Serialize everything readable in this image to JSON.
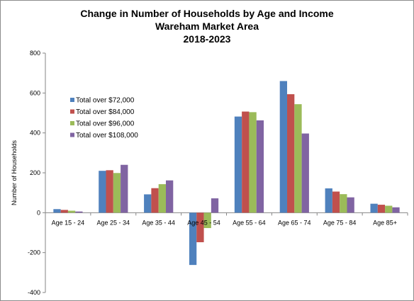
{
  "chart_data": {
    "type": "bar",
    "title": [
      "Change in Number of Households by Age and Income",
      "Wareham Market Area",
      "2018-2023"
    ],
    "xlabel": "",
    "ylabel": "Number of Households",
    "ylim": [
      -400,
      800
    ],
    "yticks": [
      -400,
      -200,
      0,
      200,
      400,
      600,
      800
    ],
    "grid": false,
    "legend_position": "top-left",
    "categories": [
      "Age 15 - 24",
      "Age 25 - 34",
      "Age 35 - 44",
      "Age 45 - 54",
      "Age 55 - 64",
      "Age 65 - 74",
      "Age 75 - 84",
      "Age 85+"
    ],
    "series": [
      {
        "name": "Total over $72,000",
        "color": "#4f81bd",
        "values": [
          18,
          210,
          92,
          -262,
          482,
          660,
          122,
          45
        ]
      },
      {
        "name": "Total over $84,000",
        "color": "#c0504d",
        "values": [
          14,
          213,
          123,
          -148,
          507,
          594,
          106,
          40
        ]
      },
      {
        "name": "Total over $96,000",
        "color": "#9bbb59",
        "values": [
          10,
          199,
          143,
          -77,
          504,
          544,
          93,
          35
        ]
      },
      {
        "name": "Total over $108,000",
        "color": "#8064a2",
        "values": [
          6,
          240,
          162,
          72,
          463,
          397,
          77,
          27
        ]
      }
    ]
  }
}
